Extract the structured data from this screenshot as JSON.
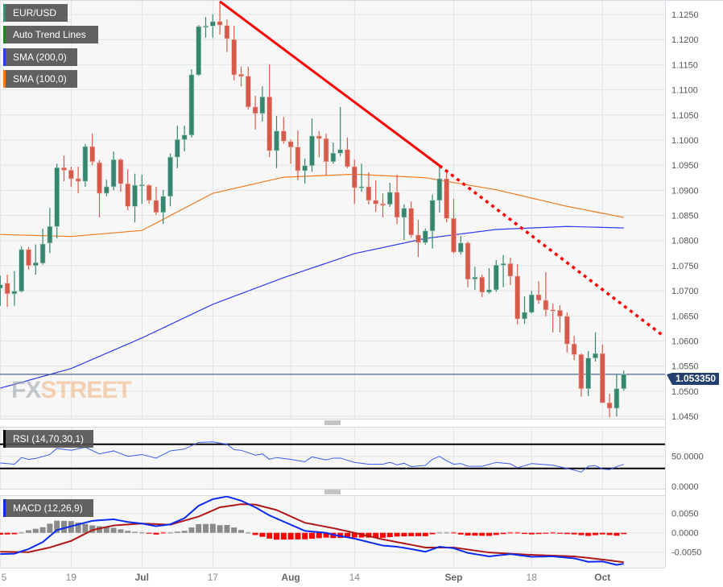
{
  "legend": {
    "symbol": "EUR/USD",
    "trend": "Auto Trend Lines",
    "sma200": "SMA (200,0)",
    "sma100": "SMA (100,0)",
    "rsi": "RSI (14,70,30,1)",
    "macd": "MACD (12,26,9)"
  },
  "colors": {
    "up": "#36866f",
    "down": "#d65a4b",
    "sma200": "#2a3cf0",
    "sma100": "#f07a1e",
    "trend": "#ff0000",
    "rsi": "#3a5cf0",
    "macd": "#0a2cf0",
    "signal": "#b01818",
    "hist_pos": "#8a8a8a",
    "hist_neg": "#ff0000",
    "symbol": "#3a8f78",
    "trend_bar": "#1a8a1a"
  },
  "watermark": {
    "part1": "FX",
    "part2": "STREET"
  },
  "current_price": "1.053350",
  "chart_data": [
    {
      "type": "candlestick",
      "title": "EUR/USD",
      "ylim": [
        1.043,
        1.128
      ],
      "yticks": [
        "1.1250",
        "1.1200",
        "1.1150",
        "1.1100",
        "1.1050",
        "1.1000",
        "1.0950",
        "1.0900",
        "1.0850",
        "1.0800",
        "1.0750",
        "1.0700",
        "1.0650",
        "1.0600",
        "1.0550",
        "1.0500",
        "1.0450"
      ],
      "xticks": [
        {
          "i": 0,
          "label": "5",
          "bold": false
        },
        {
          "i": 10,
          "label": "19",
          "bold": false
        },
        {
          "i": 20,
          "label": "Jul",
          "bold": true
        },
        {
          "i": 30,
          "label": "17",
          "bold": false
        },
        {
          "i": 41,
          "label": "Aug",
          "bold": true
        },
        {
          "i": 50,
          "label": "14",
          "bold": false
        },
        {
          "i": 64,
          "label": "Sep",
          "bold": true
        },
        {
          "i": 75,
          "label": "18",
          "bold": false
        },
        {
          "i": 85,
          "label": "Oct",
          "bold": true
        }
      ],
      "ohlc": [
        [
          1.0705,
          1.073,
          1.067,
          1.0712
        ],
        [
          1.0715,
          1.0732,
          1.0668,
          1.0694
        ],
        [
          1.0694,
          1.0739,
          1.067,
          1.0699
        ],
        [
          1.0699,
          1.0788,
          1.0697,
          1.0782
        ],
        [
          1.0782,
          1.0787,
          1.0742,
          1.075
        ],
        [
          1.075,
          1.0792,
          1.0732,
          1.0756
        ],
        [
          1.0755,
          1.0824,
          1.0752,
          1.0793
        ],
        [
          1.0795,
          1.0865,
          1.0775,
          1.0828
        ],
        [
          1.0828,
          1.0953,
          1.0804,
          1.0945
        ],
        [
          1.0945,
          1.0969,
          1.0918,
          1.094
        ],
        [
          1.094,
          1.0947,
          1.0907,
          1.0923
        ],
        [
          1.0923,
          1.0947,
          1.0894,
          1.0918
        ],
        [
          1.0918,
          1.0992,
          1.0907,
          1.0987
        ],
        [
          1.0987,
          1.1013,
          1.095,
          1.0957
        ],
        [
          1.0955,
          1.096,
          1.0846,
          1.0894
        ],
        [
          1.0894,
          1.0921,
          1.0888,
          1.0907
        ],
        [
          1.0907,
          1.0977,
          1.09,
          1.0961
        ],
        [
          1.0961,
          1.0963,
          1.0897,
          1.0913
        ],
        [
          1.0913,
          1.0942,
          1.086,
          1.0868
        ],
        [
          1.0868,
          1.0933,
          1.0836,
          1.091
        ],
        [
          1.0909,
          1.0931,
          1.0873,
          1.0911
        ],
        [
          1.091,
          1.0912,
          1.0873,
          1.088
        ],
        [
          1.088,
          1.0907,
          1.0851,
          1.0856
        ],
        [
          1.0856,
          1.0901,
          1.0833,
          1.0888
        ],
        [
          1.0888,
          1.0973,
          1.0868,
          1.0966
        ],
        [
          1.0966,
          1.1029,
          1.0944,
          1.1001
        ],
        [
          1.1001,
          1.1029,
          1.0977,
          1.101
        ],
        [
          1.101,
          1.1141,
          1.1005,
          1.113
        ],
        [
          1.113,
          1.1229,
          1.1128,
          1.1226
        ],
        [
          1.1226,
          1.1245,
          1.1204,
          1.1227
        ],
        [
          1.1227,
          1.125,
          1.1204,
          1.1236
        ],
        [
          1.1236,
          1.1276,
          1.121,
          1.1229
        ],
        [
          1.1228,
          1.124,
          1.1175,
          1.1202
        ],
        [
          1.12,
          1.1228,
          1.1119,
          1.113
        ],
        [
          1.1131,
          1.1146,
          1.1107,
          1.1127
        ],
        [
          1.1127,
          1.1146,
          1.1061,
          1.1066
        ],
        [
          1.1066,
          1.1088,
          1.1021,
          1.1053
        ],
        [
          1.1053,
          1.1107,
          1.1037,
          1.1086
        ],
        [
          1.1086,
          1.1151,
          1.0966,
          1.0979
        ],
        [
          1.0979,
          1.1048,
          1.0944,
          1.1018
        ],
        [
          1.1018,
          1.1046,
          1.0993,
          1.0998
        ],
        [
          1.0997,
          1.1001,
          1.0953,
          1.0986
        ],
        [
          1.0986,
          1.1019,
          1.092,
          1.0939
        ],
        [
          1.0939,
          1.0963,
          1.0913,
          1.0949
        ],
        [
          1.0949,
          1.1043,
          1.0937,
          1.1008
        ],
        [
          1.1008,
          1.1018,
          1.0966,
          1.1003
        ],
        [
          1.1003,
          1.1013,
          1.0929,
          1.0957
        ],
        [
          1.0957,
          1.0995,
          1.0953,
          1.0974
        ],
        [
          1.0974,
          1.1066,
          1.0968,
          1.0981
        ],
        [
          1.0981,
          1.1005,
          1.0944,
          1.0947
        ],
        [
          1.0947,
          1.0961,
          1.0873,
          1.0905
        ],
        [
          1.0905,
          1.0953,
          1.0897,
          1.0907
        ],
        [
          1.0907,
          1.0936,
          1.0872,
          1.088
        ],
        [
          1.088,
          1.092,
          1.0857,
          1.0873
        ],
        [
          1.0873,
          1.0894,
          1.0846,
          1.087
        ],
        [
          1.0872,
          1.0915,
          1.0867,
          1.0896
        ],
        [
          1.0896,
          1.0931,
          1.0833,
          1.0846
        ],
        [
          1.0846,
          1.0872,
          1.0801,
          1.0864
        ],
        [
          1.0864,
          1.0878,
          1.0806,
          1.0811
        ],
        [
          1.0811,
          1.0841,
          1.0767,
          1.0796
        ],
        [
          1.0796,
          1.0824,
          1.0792,
          1.0819
        ],
        [
          1.0819,
          1.0891,
          1.0784,
          1.088
        ],
        [
          1.088,
          1.0947,
          1.0856,
          1.0923
        ],
        [
          1.0923,
          1.0939,
          1.0836,
          1.0844
        ],
        [
          1.0844,
          1.0883,
          1.0774,
          1.0777
        ],
        [
          1.0777,
          1.0809,
          1.0772,
          1.0795
        ],
        [
          1.0795,
          1.0798,
          1.0707,
          1.0723
        ],
        [
          1.0723,
          1.0748,
          1.0702,
          1.0727
        ],
        [
          1.0727,
          1.0732,
          1.0687,
          1.0697
        ],
        [
          1.0697,
          1.0745,
          1.0694,
          1.0702
        ],
        [
          1.0702,
          1.0761,
          1.0698,
          1.0751
        ],
        [
          1.0751,
          1.0771,
          1.0707,
          1.0754
        ],
        [
          1.0754,
          1.0766,
          1.0711,
          1.0729
        ],
        [
          1.0729,
          1.0753,
          1.0633,
          1.0644
        ],
        [
          1.0644,
          1.0689,
          1.0634,
          1.0657
        ],
        [
          1.0657,
          1.07,
          1.0655,
          1.0692
        ],
        [
          1.0692,
          1.0719,
          1.0674,
          1.0681
        ],
        [
          1.0681,
          1.0737,
          1.0649,
          1.0662
        ],
        [
          1.0662,
          1.0674,
          1.0617,
          1.066
        ],
        [
          1.0661,
          1.0671,
          1.0617,
          1.0649
        ],
        [
          1.0649,
          1.0657,
          1.0577,
          1.0594
        ],
        [
          1.0594,
          1.061,
          1.0562,
          1.0573
        ],
        [
          1.0573,
          1.0575,
          1.0489,
          1.0505
        ],
        [
          1.0505,
          1.058,
          1.049,
          1.0566
        ],
        [
          1.0566,
          1.0617,
          1.0559,
          1.0575
        ],
        [
          1.0575,
          1.0593,
          1.0477,
          1.0477
        ],
        [
          1.0477,
          1.0495,
          1.0448,
          1.0466
        ],
        [
          1.0466,
          1.0534,
          1.045,
          1.0505
        ],
        [
          1.0505,
          1.0541,
          1.0501,
          1.05335
        ]
      ],
      "sma100": [
        [
          0,
          1.0812
        ],
        [
          10,
          1.0808
        ],
        [
          20,
          1.082
        ],
        [
          30,
          1.0894
        ],
        [
          40,
          1.0926
        ],
        [
          50,
          1.0932
        ],
        [
          60,
          1.0925
        ],
        [
          70,
          1.0901
        ],
        [
          80,
          1.0868
        ],
        [
          88,
          1.0846
        ]
      ],
      "sma200": [
        [
          0,
          1.0506
        ],
        [
          10,
          1.0545
        ],
        [
          20,
          1.0606
        ],
        [
          30,
          1.0673
        ],
        [
          40,
          1.0726
        ],
        [
          50,
          1.0774
        ],
        [
          60,
          1.0804
        ],
        [
          70,
          1.0822
        ],
        [
          80,
          1.0828
        ],
        [
          88,
          1.0825
        ]
      ],
      "trendline": {
        "start": [
          31,
          1.1276
        ],
        "solid_end": [
          62,
          1.0949
        ],
        "dotted_end": [
          93.7,
          1.0609
        ]
      }
    },
    {
      "type": "line",
      "title": "RSI (14,70,30,1)",
      "ylim": [
        0,
        100
      ],
      "levels": [
        70,
        30
      ],
      "yticks": [
        "50.0000",
        "0.0000"
      ],
      "points": [
        [
          0,
          39
        ],
        [
          2,
          37
        ],
        [
          3,
          48
        ],
        [
          4,
          45
        ],
        [
          5,
          46.5
        ],
        [
          7,
          53
        ],
        [
          8,
          63
        ],
        [
          10,
          60
        ],
        [
          12,
          65
        ],
        [
          14,
          54
        ],
        [
          16,
          59
        ],
        [
          18,
          50
        ],
        [
          20,
          53
        ],
        [
          22,
          47
        ],
        [
          24,
          59
        ],
        [
          26,
          62
        ],
        [
          28,
          73
        ],
        [
          30,
          74
        ],
        [
          32,
          70
        ],
        [
          33,
          61
        ],
        [
          34,
          60
        ],
        [
          36,
          52
        ],
        [
          37,
          54
        ],
        [
          38,
          45
        ],
        [
          39,
          48
        ],
        [
          41,
          45
        ],
        [
          43,
          41
        ],
        [
          44,
          49
        ],
        [
          46,
          44
        ],
        [
          47,
          47
        ],
        [
          48,
          47
        ],
        [
          50,
          40
        ],
        [
          52,
          37
        ],
        [
          54,
          37
        ],
        [
          55,
          40
        ],
        [
          56,
          36
        ],
        [
          57,
          38.5
        ],
        [
          58,
          33
        ],
        [
          60,
          35
        ],
        [
          61,
          45
        ],
        [
          62,
          50
        ],
        [
          63,
          42.5
        ],
        [
          64,
          37
        ],
        [
          65,
          38
        ],
        [
          66,
          33.6
        ],
        [
          68,
          33.5
        ],
        [
          70,
          40
        ],
        [
          72,
          37.6
        ],
        [
          73,
          31
        ],
        [
          75,
          38
        ],
        [
          78,
          35.3
        ],
        [
          80,
          30
        ],
        [
          82,
          24
        ],
        [
          83,
          33.6
        ],
        [
          84,
          34.5
        ],
        [
          85,
          29
        ],
        [
          86,
          28
        ],
        [
          87,
          33
        ],
        [
          88,
          36.7
        ]
      ]
    },
    {
      "type": "line",
      "title": "MACD (12,26,9)",
      "yticks": [
        "0.0050",
        "0.0000",
        "-0.0050"
      ],
      "macd": [
        [
          0,
          -0.0055
        ],
        [
          2,
          -0.0054
        ],
        [
          4,
          -0.0042
        ],
        [
          6,
          -0.0024
        ],
        [
          8,
          0.0007
        ],
        [
          10,
          0.0017
        ],
        [
          13,
          0.0031
        ],
        [
          16,
          0.0035
        ],
        [
          18,
          0.0028
        ],
        [
          20,
          0.0024
        ],
        [
          22,
          0.0017
        ],
        [
          24,
          0.0022
        ],
        [
          26,
          0.0038
        ],
        [
          28,
          0.007
        ],
        [
          30,
          0.0087
        ],
        [
          32,
          0.0094
        ],
        [
          34,
          0.0083
        ],
        [
          36,
          0.0066
        ],
        [
          38,
          0.0045
        ],
        [
          41,
          0.0021
        ],
        [
          43,
          0.0005
        ],
        [
          46,
          0
        ],
        [
          47,
          -0.0005
        ],
        [
          50,
          -0.0015
        ],
        [
          52,
          -0.0024
        ],
        [
          54,
          -0.0033
        ],
        [
          56,
          -0.0036
        ],
        [
          58,
          -0.0042
        ],
        [
          60,
          -0.0049
        ],
        [
          62,
          -0.0036
        ],
        [
          64,
          -0.004
        ],
        [
          66,
          -0.0052
        ],
        [
          69,
          -0.0061
        ],
        [
          72,
          -0.0055
        ],
        [
          75,
          -0.0062
        ],
        [
          78,
          -0.0061
        ],
        [
          81,
          -0.0066
        ],
        [
          83,
          -0.0075
        ],
        [
          85,
          -0.0074
        ],
        [
          87,
          -0.0083
        ],
        [
          88,
          -0.008
        ]
      ],
      "signal": [
        [
          0,
          -0.0049
        ],
        [
          4,
          -0.005
        ],
        [
          7,
          -0.0038
        ],
        [
          10,
          -0.0021
        ],
        [
          13,
          0.0007
        ],
        [
          16,
          0.0019
        ],
        [
          20,
          0.0024
        ],
        [
          24,
          0.0021
        ],
        [
          28,
          0.0042
        ],
        [
          31,
          0.0066
        ],
        [
          34,
          0.0074
        ],
        [
          36,
          0.0073
        ],
        [
          39,
          0.0059
        ],
        [
          43,
          0.0026
        ],
        [
          47,
          0.0012
        ],
        [
          50,
          0
        ],
        [
          54,
          -0.0017
        ],
        [
          60,
          -0.0038
        ],
        [
          64,
          -0.0038
        ],
        [
          69,
          -0.0051
        ],
        [
          75,
          -0.0057
        ],
        [
          81,
          -0.0061
        ],
        [
          85,
          -0.0069
        ],
        [
          88,
          -0.0076
        ]
      ]
    }
  ]
}
